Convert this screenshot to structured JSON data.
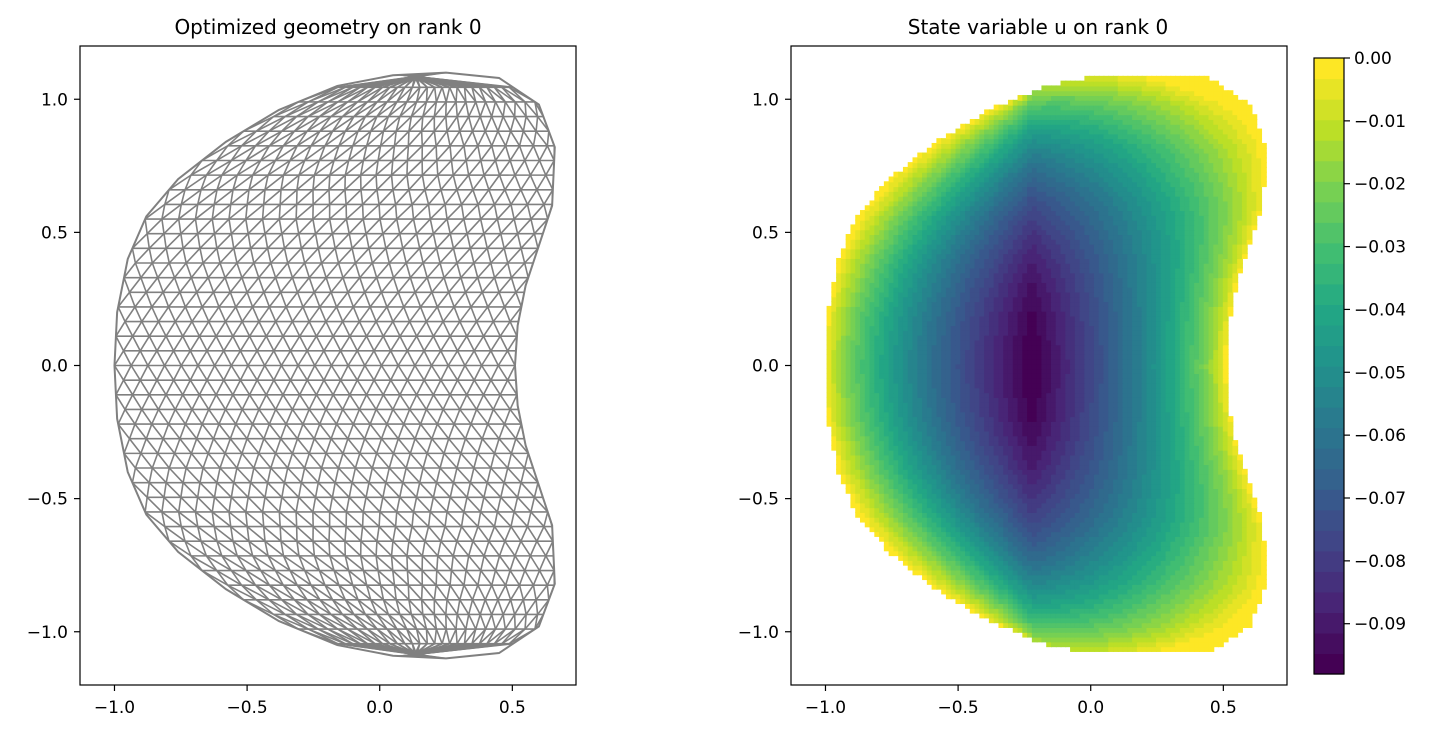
{
  "chart_data": [
    {
      "type": "mesh",
      "title": "Optimized geometry on rank 0",
      "xlabel": "",
      "ylabel": "",
      "xlim": [
        -1.13,
        0.74
      ],
      "ylim": [
        -1.2,
        1.2
      ],
      "xticks": [
        -1.0,
        -0.5,
        0.0,
        0.5
      ],
      "xtick_labels": [
        "−1.0",
        "−0.5",
        "0.0",
        "0.5"
      ],
      "yticks": [
        1.0,
        0.5,
        0.0,
        -0.5,
        -1.0
      ],
      "ytick_labels": [
        "1.0",
        "0.5",
        "0.0",
        "−0.5",
        "−1.0"
      ],
      "mesh_color": "#808080",
      "boundary": [
        [
          -1.0,
          0.0
        ],
        [
          -0.99,
          0.2
        ],
        [
          -0.95,
          0.4
        ],
        [
          -0.88,
          0.56
        ],
        [
          -0.76,
          0.7
        ],
        [
          -0.58,
          0.84
        ],
        [
          -0.38,
          0.96
        ],
        [
          -0.16,
          1.05
        ],
        [
          0.05,
          1.09
        ],
        [
          0.25,
          1.1
        ],
        [
          0.45,
          1.08
        ],
        [
          0.6,
          0.98
        ],
        [
          0.66,
          0.82
        ],
        [
          0.65,
          0.6
        ],
        [
          0.6,
          0.45
        ],
        [
          0.55,
          0.3
        ],
        [
          0.52,
          0.15
        ],
        [
          0.51,
          0.0
        ],
        [
          0.52,
          -0.15
        ],
        [
          0.55,
          -0.3
        ],
        [
          0.6,
          -0.45
        ],
        [
          0.65,
          -0.6
        ],
        [
          0.66,
          -0.82
        ],
        [
          0.6,
          -0.98
        ],
        [
          0.45,
          -1.08
        ],
        [
          0.25,
          -1.1
        ],
        [
          0.05,
          -1.09
        ],
        [
          -0.16,
          -1.05
        ],
        [
          -0.38,
          -0.96
        ],
        [
          -0.58,
          -0.84
        ],
        [
          -0.76,
          -0.7
        ],
        [
          -0.88,
          -0.56
        ],
        [
          -0.95,
          -0.4
        ],
        [
          -0.99,
          -0.2
        ]
      ]
    },
    {
      "type": "contourf",
      "title": "State variable u on rank 0",
      "xlabel": "",
      "ylabel": "",
      "xlim": [
        -1.13,
        0.74
      ],
      "ylim": [
        -1.2,
        1.2
      ],
      "xticks": [
        -1.0,
        -0.5,
        0.0,
        0.5
      ],
      "xtick_labels": [
        "−1.0",
        "−0.5",
        "0.0",
        "0.5"
      ],
      "yticks": [
        1.0,
        0.5,
        0.0,
        -0.5,
        -1.0
      ],
      "ytick_labels": [
        "1.0",
        "0.5",
        "0.0",
        "−0.5",
        "−1.0"
      ],
      "colormap": "viridis",
      "value_min": -0.098,
      "value_max": 0.0,
      "minimum_location": [
        -0.22,
        0.0
      ],
      "levels": 30,
      "colorbar": {
        "ticks": [
          0.0,
          -0.01,
          -0.02,
          -0.03,
          -0.04,
          -0.05,
          -0.06,
          -0.07,
          -0.08,
          -0.09
        ],
        "tick_labels": [
          "0.00",
          "−0.01",
          "−0.02",
          "−0.03",
          "−0.04",
          "−0.05",
          "−0.06",
          "−0.07",
          "−0.08",
          "−0.09"
        ],
        "placement": "right"
      }
    }
  ]
}
